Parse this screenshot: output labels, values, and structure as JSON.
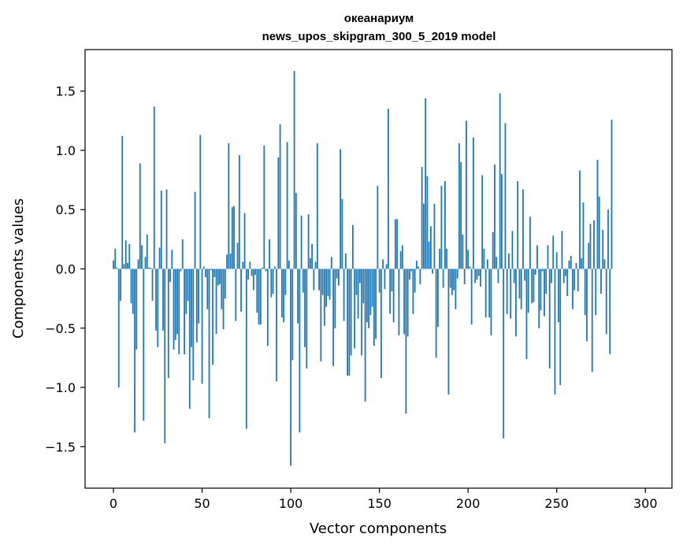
{
  "chart_data": {
    "type": "bar",
    "title": [
      "океанариум",
      "news_upos_skipgram_300_5_2019 model"
    ],
    "xlabel": "Vector components",
    "ylabel": "Components values",
    "xlim": [
      -16,
      315
    ],
    "ylim": [
      -1.85,
      1.85
    ],
    "xticks": [
      0,
      50,
      100,
      150,
      200,
      250,
      300
    ],
    "yticks": [
      -1.5,
      -1.0,
      -0.5,
      0.0,
      0.5,
      1.0,
      1.5
    ],
    "ytick_labels": [
      "−1.5",
      "−1.0",
      "−0.5",
      "0.0",
      "0.5",
      "1.0",
      "1.5"
    ],
    "color": "#1f77b4",
    "grid": false,
    "values": [
      0.07,
      0.17,
      0.01,
      -1.0,
      -0.27,
      1.12,
      0.04,
      0.24,
      0.05,
      0.21,
      -0.29,
      -0.38,
      -1.38,
      -0.68,
      0.08,
      0.89,
      0.2,
      -1.28,
      0.1,
      0.29,
      0.01,
      0.01,
      -0.27,
      1.37,
      -0.52,
      -0.66,
      0.18,
      0.66,
      -0.52,
      -1.47,
      0.67,
      -0.92,
      -0.11,
      0.16,
      -0.68,
      -0.6,
      -0.55,
      -0.72,
      -0.02,
      0.25,
      -0.72,
      -0.38,
      -0.27,
      -1.18,
      -0.66,
      -0.94,
      0.65,
      -0.62,
      -0.46,
      1.13,
      -0.97,
      0.02,
      -0.07,
      -0.34,
      -1.26,
      -0.01,
      -0.81,
      -0.07,
      -0.55,
      -0.14,
      -0.13,
      -0.34,
      -0.51,
      -0.25,
      0.12,
      1.06,
      0.13,
      0.52,
      0.53,
      -0.44,
      0.22,
      0.96,
      -0.36,
      0.06,
      0.47,
      -1.35,
      -0.09,
      0.06,
      -0.06,
      -0.18,
      -0.05,
      -0.37,
      -0.47,
      -0.47,
      0.01,
      1.04,
      -0.02,
      -0.65,
      0.25,
      -0.24,
      -0.21,
      0.02,
      -0.95,
      0.94,
      1.22,
      -0.41,
      -0.45,
      -0.22,
      1.07,
      0.07,
      -1.66,
      -0.77,
      1.67,
      0.64,
      -0.46,
      -1.38,
      0.45,
      -0.2,
      -0.66,
      -0.84,
      0.46,
      0.09,
      0.21,
      -0.18,
      0.06,
      1.06,
      -0.18,
      -0.78,
      -0.22,
      -0.48,
      -0.32,
      -0.23,
      -0.26,
      0.1,
      -0.82,
      -0.5,
      -0.08,
      -0.14,
      1.01,
      0.59,
      -0.44,
      0.13,
      -0.9,
      -0.9,
      -0.73,
      0.37,
      -0.67,
      -0.22,
      -0.42,
      -0.12,
      -0.73,
      -0.29,
      -1.12,
      -0.45,
      -0.5,
      -0.39,
      -0.32,
      -0.65,
      -0.59,
      0.7,
      -0.2,
      -0.92,
      0.08,
      -0.17,
      0.04,
      1.35,
      -0.38,
      -0.19,
      -0.45,
      0.42,
      0.42,
      -0.56,
      0.15,
      0.2,
      -0.55,
      -1.22,
      -0.57,
      -0.09,
      -0.02,
      -0.38,
      -0.2,
      0.07,
      0.02,
      -0.13,
      0.86,
      0.55,
      1.44,
      0.78,
      0.23,
      0.36,
      -0.04,
      0.55,
      -0.75,
      -0.49,
      0.17,
      0.7,
      -0.16,
      0.74,
      0.17,
      -1.06,
      -0.16,
      -0.22,
      -0.18,
      -0.34,
      -0.08,
      1.06,
      0.9,
      0.29,
      -0.13,
      1.25,
      0.16,
      0.02,
      -0.47,
      1.11,
      -0.12,
      -0.09,
      -0.06,
      -0.15,
      0.79,
      0.17,
      -0.41,
      0.08,
      -0.41,
      -0.56,
      0.31,
      0.88,
      0.1,
      -0.12,
      1.48,
      0.8,
      -1.43,
      1.23,
      -0.38,
      0.13,
      -0.42,
      0.32,
      -0.12,
      -0.57,
      0.74,
      -0.25,
      -0.34,
      0.67,
      -0.1,
      -0.76,
      -0.37,
      0.44,
      -0.29,
      -0.28,
      -0.05,
      0.2,
      -0.5,
      -0.35,
      -0.02,
      -0.4,
      -0.21,
      0.2,
      -0.84,
      -0.12,
      0.28,
      -1.06,
      0.14,
      -0.45,
      -0.98,
      0.32,
      -0.12,
      -0.06,
      -0.23,
      0.07,
      0.11,
      -0.34,
      -0.18,
      0.05,
      -0.19,
      0.83,
      0.09,
      0.56,
      -0.39,
      -0.61,
      0.22,
      0.38,
      -0.87,
      0.41,
      -0.39,
      0.92,
      0.61,
      -0.21,
      0.33,
      0.08,
      -0.55,
      0.5,
      -0.72,
      1.26
    ]
  }
}
